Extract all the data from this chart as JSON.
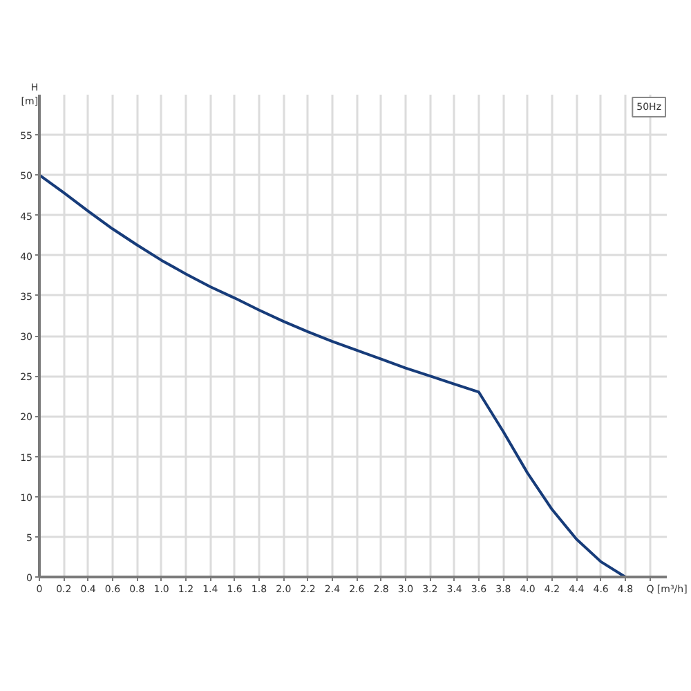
{
  "chart_data": {
    "type": "line",
    "ylabel": "H [m]",
    "xlabel": "Q [m³/h]",
    "annotations": [
      "50Hz"
    ],
    "x": [
      0,
      0.2,
      0.4,
      0.6,
      0.8,
      1.0,
      1.2,
      1.4,
      1.6,
      1.8,
      2.0,
      2.2,
      2.4,
      2.6,
      2.8,
      3.0,
      3.2,
      3.4,
      3.6,
      3.8,
      4.0,
      4.2,
      4.4,
      4.6,
      4.8
    ],
    "series": [
      {
        "color": "#173c7a",
        "values": [
          50,
          47.8,
          45.5,
          43.3,
          41.3,
          39.4,
          37.7,
          36.1,
          34.7,
          33.2,
          31.8,
          30.5,
          29.3,
          28.2,
          27.1,
          26.0,
          25.0,
          24.0,
          23.0,
          18.1,
          12.9,
          8.4,
          4.7,
          1.9,
          0
        ]
      }
    ],
    "xlim": [
      0,
      5.14
    ],
    "xticks": [
      0,
      0.2,
      0.4,
      0.6,
      0.8,
      {
        "value": 1,
        "label": "1.0"
      },
      1.2,
      1.4,
      1.6,
      1.8,
      {
        "value": 2,
        "label": "2.0"
      },
      2.2,
      2.4,
      2.6,
      2.8,
      {
        "value": 3,
        "label": "3.0"
      },
      3.2,
      3.4,
      3.6,
      3.8,
      {
        "value": 4,
        "label": "4.0"
      },
      4.2,
      4.4,
      4.6,
      4.8,
      {
        "value": 5,
        "label": null
      }
    ],
    "ylim": [
      0,
      60
    ],
    "yticks": [
      0,
      5,
      10,
      15,
      20,
      25,
      30,
      35,
      40,
      45,
      50,
      55
    ],
    "grid": true
  }
}
